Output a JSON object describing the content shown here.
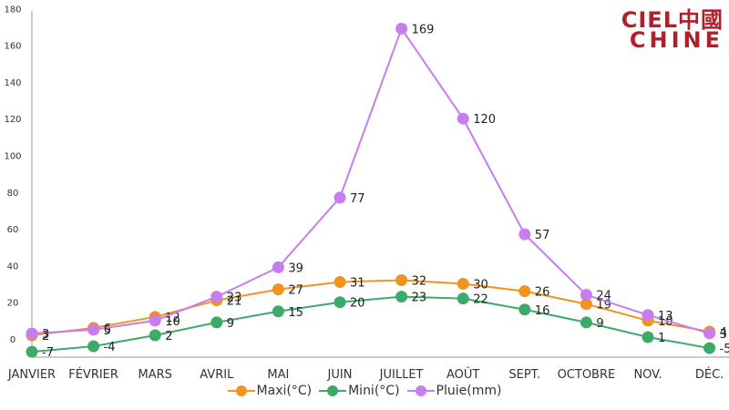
{
  "brand": {
    "line1": "CIEL中國",
    "line2": "CHINE",
    "color": "#b0202a"
  },
  "chart_data": {
    "type": "line",
    "categories": [
      "JANVIER",
      "FÉVRIER",
      "MARS",
      "AVRIL",
      "MAI",
      "JUIN",
      "JUILLET",
      "AOÛT",
      "SEPT.",
      "OCTOBRE",
      "NOV.",
      "DÉC."
    ],
    "y_ticks": [
      "0",
      "20",
      "40",
      "60",
      "80",
      "100",
      "120",
      "140",
      "160",
      "180"
    ],
    "ylim": [
      0,
      180
    ],
    "grid": false,
    "legend_position": "bottom",
    "series": [
      {
        "name": "Maxi(°C)",
        "color": "#f0941e",
        "values": [
          2,
          6,
          12,
          21,
          27,
          31,
          32,
          30,
          26,
          19,
          10,
          4
        ]
      },
      {
        "name": "Mini(°C)",
        "color": "#3daa6a",
        "values": [
          -7,
          -4,
          2,
          9,
          15,
          20,
          23,
          22,
          16,
          9,
          1,
          -5
        ]
      },
      {
        "name": "Pluie(mm)",
        "color": "#c77ded",
        "values": [
          3,
          5,
          10,
          23,
          39,
          77,
          169,
          120,
          57,
          24,
          13,
          3
        ]
      }
    ]
  }
}
